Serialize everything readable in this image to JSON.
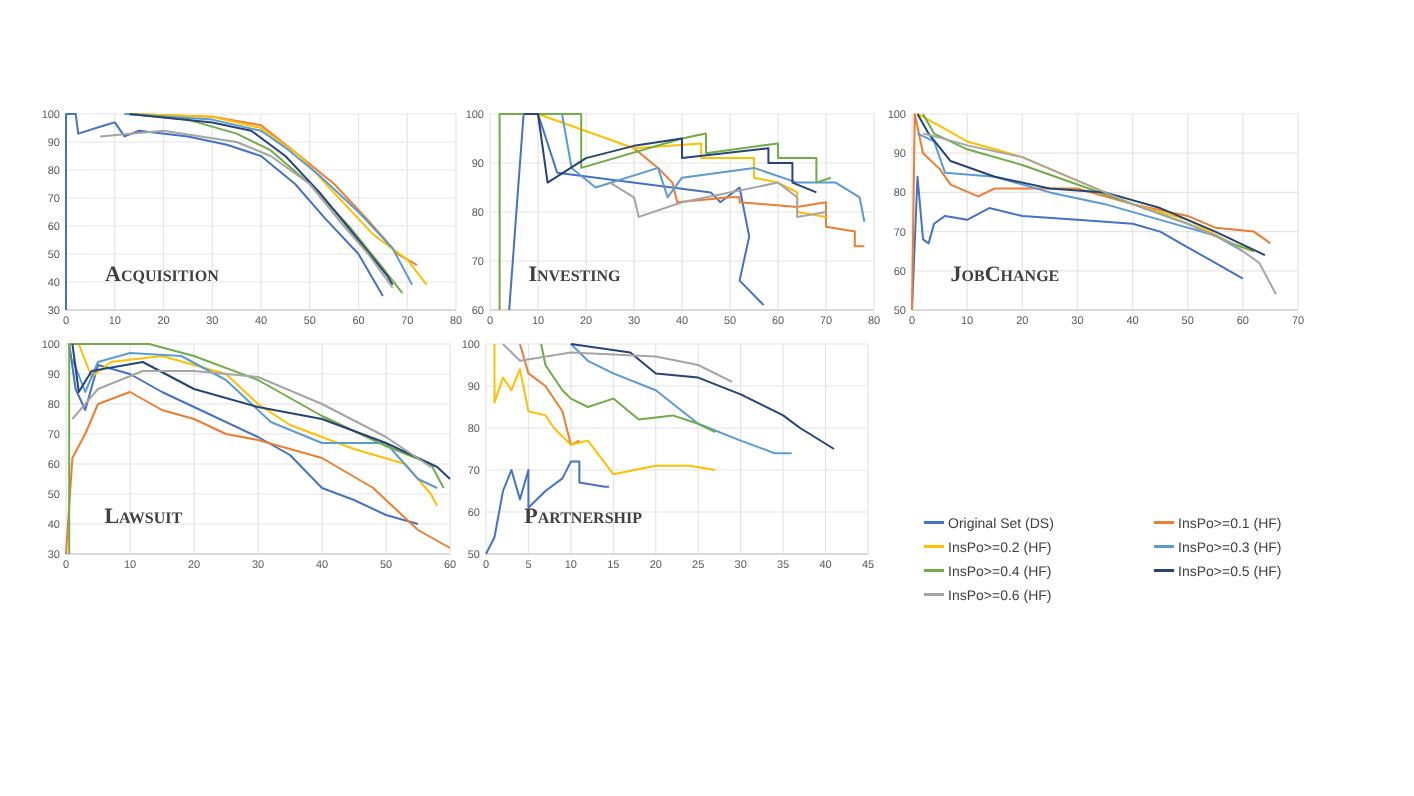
{
  "chart_data": [
    {
      "type": "line",
      "title": "Acquisition",
      "xlim": [
        0,
        80
      ],
      "xticks": [
        0,
        10,
        20,
        30,
        40,
        50,
        60,
        70,
        80
      ],
      "ylim": [
        30,
        100
      ],
      "yticks": [
        30,
        40,
        50,
        60,
        70,
        80,
        90,
        100
      ],
      "grid": true,
      "series": [
        {
          "color": "#4472c4",
          "x": [
            0,
            0,
            2,
            2.5,
            8,
            10,
            12,
            15,
            25,
            33,
            40,
            47,
            53,
            60,
            65
          ],
          "values": [
            30,
            100,
            100,
            93,
            96,
            97,
            92,
            94,
            92,
            89,
            85,
            75,
            63,
            50,
            35
          ]
        },
        {
          "color": "#ed7d31",
          "x": [
            13,
            30,
            40,
            48,
            55,
            62,
            68,
            72
          ],
          "values": [
            100,
            99,
            96,
            85,
            75,
            62,
            50,
            46
          ]
        },
        {
          "color": "#ffc000",
          "x": [
            13,
            30,
            40,
            48,
            56,
            63,
            70,
            74
          ],
          "values": [
            100,
            99,
            95,
            85,
            70,
            57,
            48,
            39
          ]
        },
        {
          "color": "#5b9bd5",
          "x": [
            12,
            30,
            40,
            45,
            52,
            60,
            67,
            71
          ],
          "values": [
            100,
            98,
            94,
            88,
            78,
            65,
            52,
            39
          ]
        },
        {
          "color": "#70ad47",
          "x": [
            13,
            25,
            35,
            42,
            50,
            58,
            65,
            69
          ],
          "values": [
            100,
            98,
            93,
            87,
            75,
            60,
            45,
            36
          ]
        },
        {
          "color": "#264478",
          "x": [
            13,
            30,
            38,
            45,
            52,
            60,
            66,
            67
          ],
          "values": [
            100,
            97,
            94,
            85,
            72,
            55,
            42,
            39
          ]
        },
        {
          "color": "#a5a5a5",
          "x": [
            7,
            20,
            35,
            42,
            50,
            57,
            62,
            67
          ],
          "values": [
            92,
            94,
            90,
            85,
            75,
            60,
            50,
            38
          ]
        }
      ]
    },
    {
      "type": "line",
      "title": "Investing",
      "xlim": [
        0,
        80
      ],
      "xticks": [
        0,
        10,
        20,
        30,
        40,
        50,
        60,
        70,
        80
      ],
      "ylim": [
        60,
        100
      ],
      "yticks": [
        60,
        70,
        80,
        90,
        100
      ],
      "grid": true,
      "series": [
        {
          "color": "#4472c4",
          "x": [
            4,
            7,
            10,
            14,
            46,
            48,
            52,
            54,
            52,
            56,
            57
          ],
          "values": [
            60,
            100,
            100,
            88,
            84,
            82,
            85,
            75,
            66,
            62,
            61
          ]
        },
        {
          "color": "#ed7d31",
          "x": [
            30,
            35,
            38,
            39,
            50,
            52,
            52,
            64,
            70,
            70,
            76,
            76,
            78
          ],
          "values": [
            93,
            89,
            86,
            82,
            83,
            83,
            82,
            81,
            82,
            77,
            76,
            73,
            73
          ]
        },
        {
          "color": "#ffc000",
          "x": [
            10,
            30,
            44,
            44,
            55,
            55,
            60,
            64,
            64,
            70
          ],
          "values": [
            100,
            93,
            94,
            91,
            91,
            87,
            86,
            84,
            80,
            79
          ]
        },
        {
          "color": "#5b9bd5",
          "x": [
            15,
            17,
            22,
            35,
            37,
            40,
            55,
            64,
            72,
            77,
            78
          ],
          "values": [
            100,
            89,
            85,
            89,
            83,
            87,
            89,
            86,
            86,
            83,
            78
          ]
        },
        {
          "color": "#70ad47",
          "x": [
            2,
            2,
            19,
            19,
            40,
            45,
            45,
            60,
            60,
            68,
            68,
            71
          ],
          "values": [
            60,
            100,
            100,
            89,
            95,
            96,
            92,
            94,
            91,
            91,
            86,
            87
          ]
        },
        {
          "color": "#264478",
          "x": [
            7,
            10,
            12,
            20,
            30,
            40,
            40,
            58,
            58,
            63,
            63,
            68
          ],
          "values": [
            100,
            100,
            86,
            91,
            93.5,
            95,
            91,
            93,
            90,
            90,
            86,
            84
          ]
        },
        {
          "color": "#a5a5a5",
          "x": [
            25,
            30,
            31,
            40,
            60,
            64,
            64,
            70
          ],
          "values": [
            86,
            83,
            79,
            82,
            86,
            83,
            79,
            80
          ]
        }
      ]
    },
    {
      "type": "line",
      "title": "JobChange",
      "xlim": [
        0,
        70
      ],
      "xticks": [
        0,
        10,
        20,
        30,
        40,
        50,
        60,
        70
      ],
      "ylim": [
        50,
        100
      ],
      "yticks": [
        50,
        60,
        70,
        80,
        90,
        100
      ],
      "grid": true,
      "series": [
        {
          "color": "#4472c4",
          "x": [
            0,
            1,
            2,
            3,
            4,
            6,
            10,
            14,
            20,
            30,
            40,
            45,
            50,
            55,
            60
          ],
          "values": [
            50,
            84,
            68,
            67,
            72,
            74,
            73,
            76,
            74,
            73,
            72,
            70,
            66,
            62,
            58
          ]
        },
        {
          "color": "#ed7d31",
          "x": [
            0,
            0.5,
            2,
            5,
            7,
            12,
            15,
            30,
            40,
            50,
            55,
            62,
            65
          ],
          "values": [
            50,
            100,
            90,
            86,
            82,
            79,
            81,
            81,
            77,
            74,
            71,
            70,
            67
          ]
        },
        {
          "color": "#ffc000",
          "x": [
            1,
            5,
            10,
            20,
            30,
            40,
            50,
            58,
            62
          ],
          "values": [
            100,
            97,
            93,
            89,
            83,
            77,
            73,
            67,
            65
          ]
        },
        {
          "color": "#5b9bd5",
          "x": [
            1,
            4,
            6,
            15,
            25,
            35,
            45,
            55,
            60
          ],
          "values": [
            95,
            93,
            85,
            84,
            80,
            77,
            73,
            69,
            65
          ]
        },
        {
          "color": "#70ad47",
          "x": [
            2,
            4,
            10,
            20,
            30,
            40,
            50,
            58,
            62
          ],
          "values": [
            100,
            95,
            91,
            87,
            82,
            77,
            72,
            67,
            65
          ]
        },
        {
          "color": "#264478",
          "x": [
            1,
            3,
            7,
            15,
            25,
            35,
            45,
            55,
            64
          ],
          "values": [
            100,
            95,
            88,
            84,
            81,
            80,
            76,
            70,
            64
          ]
        },
        {
          "color": "#a5a5a5",
          "x": [
            2,
            5,
            10,
            20,
            30,
            40,
            50,
            58,
            63,
            66
          ],
          "values": [
            95,
            94,
            92,
            89,
            83,
            77,
            72,
            67,
            62,
            54
          ]
        }
      ]
    },
    {
      "type": "line",
      "title": "Lawsuit",
      "xlim": [
        0,
        60
      ],
      "xticks": [
        0,
        10,
        20,
        30,
        40,
        50,
        60
      ],
      "ylim": [
        30,
        100
      ],
      "yticks": [
        30,
        40,
        50,
        60,
        70,
        80,
        90,
        100
      ],
      "grid": true,
      "series": [
        {
          "color": "#4472c4",
          "x": [
            0.5,
            1.5,
            3,
            5,
            10,
            15,
            20,
            30,
            35,
            40,
            45,
            50,
            55
          ],
          "values": [
            100,
            85,
            78,
            93,
            90,
            84,
            79,
            69,
            63,
            52,
            48,
            43,
            40
          ]
        },
        {
          "color": "#ed7d31",
          "x": [
            0,
            1,
            3,
            5,
            10,
            15,
            20,
            25,
            30,
            40,
            48,
            55,
            60
          ],
          "values": [
            30,
            62,
            70,
            80,
            84,
            78,
            75,
            70,
            68,
            62,
            52,
            38,
            32
          ]
        },
        {
          "color": "#ffc000",
          "x": [
            2,
            4,
            7,
            15,
            25,
            30,
            35,
            45,
            53,
            57,
            58
          ],
          "values": [
            100,
            89,
            94,
            96,
            90,
            80,
            73,
            65,
            60,
            50,
            46
          ]
        },
        {
          "color": "#5b9bd5",
          "x": [
            1,
            3,
            5,
            10,
            18,
            25,
            32,
            40,
            50,
            55,
            58
          ],
          "values": [
            95,
            84,
            94,
            97,
            96,
            88,
            74,
            67,
            67,
            55,
            52
          ]
        },
        {
          "color": "#70ad47",
          "x": [
            0.5,
            0.5,
            13,
            20,
            30,
            40,
            50,
            57,
            59
          ],
          "values": [
            30,
            100,
            100,
            96,
            88,
            76,
            66,
            60,
            52
          ]
        },
        {
          "color": "#264478",
          "x": [
            1,
            2,
            4,
            12,
            20,
            30,
            40,
            50,
            58,
            60
          ],
          "values": [
            100,
            84,
            91,
            94,
            85,
            79,
            75,
            67,
            59,
            55
          ]
        },
        {
          "color": "#a5a5a5",
          "x": [
            1,
            5,
            12,
            20,
            30,
            40,
            50,
            57
          ],
          "values": [
            75,
            85,
            91,
            91,
            89,
            80,
            69,
            59
          ]
        }
      ]
    },
    {
      "type": "line",
      "title": "Partnership",
      "xlim": [
        0,
        45
      ],
      "xticks": [
        0,
        5,
        10,
        15,
        20,
        25,
        30,
        35,
        40,
        45
      ],
      "ylim": [
        50,
        100
      ],
      "yticks": [
        50,
        60,
        70,
        80,
        90,
        100
      ],
      "grid": true,
      "legend": "right",
      "series": [
        {
          "name": "Original Set (DS)",
          "color": "#4472c4",
          "x": [
            0,
            1,
            2,
            3,
            4,
            5,
            5,
            7,
            9,
            10,
            11,
            11,
            14,
            14.5
          ],
          "values": [
            50,
            54,
            65,
            70,
            63,
            70,
            61,
            65,
            68,
            72,
            72,
            67,
            66,
            66
          ]
        },
        {
          "name": "InsPo>=0.1 (HF)",
          "color": "#ed7d31",
          "x": [
            4,
            5,
            7,
            9,
            10,
            11
          ],
          "values": [
            100,
            93,
            90,
            84,
            76,
            77
          ]
        },
        {
          "name": "InsPo>=0.2 (HF)",
          "color": "#ffc000",
          "x": [
            1,
            1,
            2,
            3,
            4,
            5,
            7,
            8,
            10,
            12,
            15,
            20,
            24,
            27
          ],
          "values": [
            100,
            86,
            92,
            89,
            94,
            84,
            83,
            80,
            76,
            77,
            69,
            71,
            71,
            70
          ]
        },
        {
          "name": "InsPo>=0.3 (HF)",
          "color": "#5b9bd5",
          "x": [
            10,
            12,
            15,
            20,
            25,
            30,
            34,
            36
          ],
          "values": [
            100,
            96,
            93,
            89,
            81,
            77,
            74,
            74
          ]
        },
        {
          "name": "InsPo>=0.4 (HF)",
          "color": "#70ad47",
          "x": [
            6.5,
            7,
            9,
            10,
            12,
            15,
            18,
            22,
            25,
            27
          ],
          "values": [
            100,
            95,
            89,
            87,
            85,
            87,
            82,
            83,
            81,
            79
          ]
        },
        {
          "name": "InsPo>=0.5 (HF)",
          "color": "#264478",
          "x": [
            10,
            17,
            20,
            25,
            30,
            35,
            37,
            41
          ],
          "values": [
            100,
            98,
            93,
            92,
            88,
            83,
            80,
            75
          ]
        },
        {
          "name": "InsPo>=0.6 (HF)",
          "color": "#a5a5a5",
          "x": [
            2,
            4,
            10,
            20,
            25,
            29
          ],
          "values": [
            100,
            96,
            98,
            97,
            95,
            91
          ]
        }
      ]
    }
  ]
}
